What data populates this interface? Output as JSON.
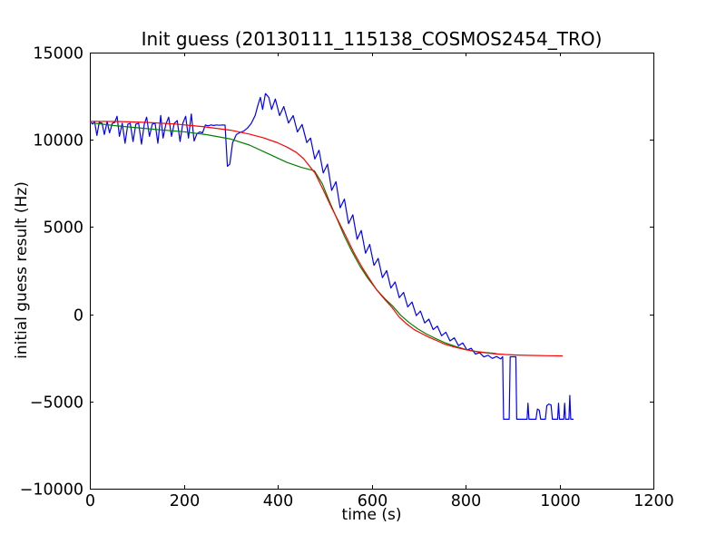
{
  "figure": {
    "background_color": "#ffffff",
    "axis_color": "#000000"
  },
  "chart_data": {
    "type": "line",
    "title": "Init guess (20130111_115138_COSMOS2454_TRO)",
    "xlabel": "time (s)",
    "ylabel": "initial guess result (Hz)",
    "xlim": [
      0,
      1200
    ],
    "ylim": [
      -10000,
      15000
    ],
    "grid": false,
    "legend_position": "none",
    "xtick_values": [
      0,
      200,
      400,
      600,
      800,
      1000,
      1200
    ],
    "xticks": [
      "0",
      "200",
      "400",
      "600",
      "800",
      "1000",
      "1200"
    ],
    "ytick_values": [
      -10000,
      -5000,
      0,
      5000,
      10000,
      15000
    ],
    "yticks": [
      "−10000",
      "−5000",
      "0",
      "5000",
      "10000",
      "15000"
    ],
    "series": [
      {
        "name": "blue-measured-data",
        "color": "#0000ff",
        "points": [
          [
            0,
            11050
          ],
          [
            6,
            10900
          ],
          [
            10,
            11050
          ],
          [
            15,
            10250
          ],
          [
            20,
            11000
          ],
          [
            26,
            10950
          ],
          [
            31,
            10300
          ],
          [
            37,
            11050
          ],
          [
            42,
            10400
          ],
          [
            48,
            10950
          ],
          [
            53,
            11000
          ],
          [
            58,
            11350
          ],
          [
            63,
            10200
          ],
          [
            69,
            10950
          ],
          [
            75,
            9800
          ],
          [
            81,
            10900
          ],
          [
            86,
            10950
          ],
          [
            92,
            9900
          ],
          [
            98,
            10900
          ],
          [
            104,
            10950
          ],
          [
            110,
            9750
          ],
          [
            116,
            10900
          ],
          [
            121,
            11300
          ],
          [
            127,
            10200
          ],
          [
            133,
            10900
          ],
          [
            139,
            10950
          ],
          [
            145,
            9800
          ],
          [
            151,
            11400
          ],
          [
            156,
            10100
          ],
          [
            162,
            10900
          ],
          [
            168,
            11300
          ],
          [
            174,
            10200
          ],
          [
            180,
            10950
          ],
          [
            186,
            11100
          ],
          [
            192,
            9900
          ],
          [
            198,
            10950
          ],
          [
            204,
            11350
          ],
          [
            210,
            10100
          ],
          [
            216,
            11480
          ],
          [
            222,
            9930
          ],
          [
            228,
            10350
          ],
          [
            234,
            10450
          ],
          [
            240,
            10400
          ],
          [
            246,
            10850
          ],
          [
            252,
            10800
          ],
          [
            258,
            10850
          ],
          [
            264,
            10820
          ],
          [
            270,
            10850
          ],
          [
            276,
            10830
          ],
          [
            282,
            10850
          ],
          [
            288,
            10840
          ],
          [
            293,
            8480
          ],
          [
            298,
            8600
          ],
          [
            304,
            9830
          ],
          [
            312,
            10300
          ],
          [
            320,
            10420
          ],
          [
            328,
            10500
          ],
          [
            336,
            10680
          ],
          [
            344,
            10950
          ],
          [
            352,
            11400
          ],
          [
            358,
            12000
          ],
          [
            363,
            12430
          ],
          [
            368,
            11740
          ],
          [
            374,
            12650
          ],
          [
            381,
            12430
          ],
          [
            387,
            11740
          ],
          [
            395,
            12340
          ],
          [
            404,
            11390
          ],
          [
            413,
            11910
          ],
          [
            423,
            10960
          ],
          [
            433,
            11390
          ],
          [
            442,
            10450
          ],
          [
            452,
            10880
          ],
          [
            462,
            9840
          ],
          [
            470,
            10100
          ],
          [
            479,
            8900
          ],
          [
            488,
            9400
          ],
          [
            497,
            8100
          ],
          [
            506,
            8600
          ],
          [
            515,
            7100
          ],
          [
            524,
            7600
          ],
          [
            533,
            6100
          ],
          [
            542,
            6600
          ],
          [
            551,
            5200
          ],
          [
            560,
            5700
          ],
          [
            569,
            4300
          ],
          [
            578,
            4800
          ],
          [
            587,
            3500
          ],
          [
            596,
            4000
          ],
          [
            605,
            2800
          ],
          [
            614,
            3200
          ],
          [
            623,
            2100
          ],
          [
            632,
            2500
          ],
          [
            641,
            1500
          ],
          [
            650,
            1850
          ],
          [
            659,
            950
          ],
          [
            668,
            1250
          ],
          [
            677,
            420
          ],
          [
            686,
            700
          ],
          [
            695,
            -80
          ],
          [
            704,
            180
          ],
          [
            713,
            -500
          ],
          [
            722,
            -280
          ],
          [
            731,
            -880
          ],
          [
            740,
            -680
          ],
          [
            749,
            -1230
          ],
          [
            758,
            -1030
          ],
          [
            767,
            -1530
          ],
          [
            776,
            -1350
          ],
          [
            785,
            -1800
          ],
          [
            794,
            -1640
          ],
          [
            803,
            -2050
          ],
          [
            812,
            -1950
          ],
          [
            821,
            -2280
          ],
          [
            830,
            -2200
          ],
          [
            839,
            -2450
          ],
          [
            848,
            -2350
          ],
          [
            857,
            -2530
          ],
          [
            866,
            -2420
          ],
          [
            875,
            -2560
          ],
          [
            879,
            -2430
          ],
          [
            881,
            -6020
          ],
          [
            893,
            -6020
          ],
          [
            895,
            -2440
          ],
          [
            907,
            -2440
          ],
          [
            909,
            -6020
          ],
          [
            931,
            -6020
          ],
          [
            933,
            -5100
          ],
          [
            935,
            -6020
          ],
          [
            950,
            -6020
          ],
          [
            953,
            -5430
          ],
          [
            957,
            -5500
          ],
          [
            960,
            -6020
          ],
          [
            970,
            -6020
          ],
          [
            973,
            -5250
          ],
          [
            977,
            -5150
          ],
          [
            982,
            -5200
          ],
          [
            985,
            -6020
          ],
          [
            996,
            -6020
          ],
          [
            998,
            -5100
          ],
          [
            1000,
            -6020
          ],
          [
            1009,
            -6020
          ],
          [
            1011,
            -5100
          ],
          [
            1013,
            -6020
          ],
          [
            1020,
            -6020
          ],
          [
            1022,
            -4650
          ],
          [
            1024,
            -6020
          ],
          [
            1030,
            -6020
          ]
        ]
      },
      {
        "name": "green-fit-curve",
        "color": "#008000",
        "points": [
          [
            0,
            10980
          ],
          [
            50,
            10820
          ],
          [
            100,
            10690
          ],
          [
            150,
            10570
          ],
          [
            200,
            10460
          ],
          [
            250,
            10290
          ],
          [
            300,
            10040
          ],
          [
            340,
            9700
          ],
          [
            380,
            9200
          ],
          [
            420,
            8700
          ],
          [
            450,
            8420
          ],
          [
            478,
            8230
          ],
          [
            495,
            7480
          ],
          [
            510,
            6480
          ],
          [
            526,
            5480
          ],
          [
            542,
            4480
          ],
          [
            558,
            3600
          ],
          [
            575,
            2760
          ],
          [
            592,
            2060
          ],
          [
            610,
            1430
          ],
          [
            628,
            900
          ],
          [
            645,
            460
          ],
          [
            662,
            -60
          ],
          [
            680,
            -480
          ],
          [
            698,
            -830
          ],
          [
            716,
            -1120
          ],
          [
            736,
            -1390
          ],
          [
            756,
            -1630
          ],
          [
            778,
            -1840
          ],
          [
            800,
            -2010
          ],
          [
            822,
            -2130
          ],
          [
            843,
            -2200
          ],
          [
            865,
            -2245
          ]
        ]
      },
      {
        "name": "red-fit-curve",
        "color": "#ff0000",
        "points": [
          [
            0,
            11060
          ],
          [
            60,
            11050
          ],
          [
            120,
            11000
          ],
          [
            180,
            10910
          ],
          [
            240,
            10760
          ],
          [
            300,
            10550
          ],
          [
            340,
            10330
          ],
          [
            370,
            10110
          ],
          [
            400,
            9830
          ],
          [
            420,
            9580
          ],
          [
            440,
            9270
          ],
          [
            455,
            8920
          ],
          [
            466,
            8550
          ],
          [
            480,
            8070
          ],
          [
            496,
            7190
          ],
          [
            514,
            6150
          ],
          [
            530,
            5300
          ],
          [
            546,
            4430
          ],
          [
            562,
            3550
          ],
          [
            580,
            2680
          ],
          [
            596,
            2010
          ],
          [
            611,
            1390
          ],
          [
            627,
            880
          ],
          [
            643,
            400
          ],
          [
            659,
            -165
          ],
          [
            675,
            -560
          ],
          [
            691,
            -890
          ],
          [
            707,
            -1112
          ],
          [
            723,
            -1330
          ],
          [
            740,
            -1530
          ],
          [
            756,
            -1718
          ],
          [
            775,
            -1870
          ],
          [
            795,
            -2000
          ],
          [
            815,
            -2110
          ],
          [
            835,
            -2190
          ],
          [
            860,
            -2260
          ],
          [
            885,
            -2310
          ],
          [
            910,
            -2340
          ],
          [
            940,
            -2360
          ],
          [
            975,
            -2375
          ],
          [
            1007,
            -2385
          ]
        ]
      }
    ]
  }
}
